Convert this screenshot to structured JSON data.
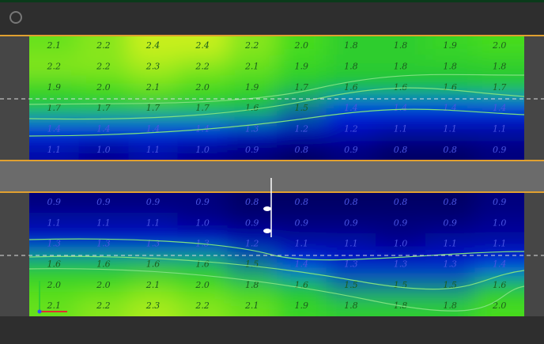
{
  "top_grid": {
    "rows": [
      [
        "2.1",
        "2.2",
        "2.4",
        "2.4",
        "2.2",
        "2.0",
        "1.8",
        "1.8",
        "1.9",
        "2.0"
      ],
      [
        "2.2",
        "2.2",
        "2.3",
        "2.2",
        "2.1",
        "1.9",
        "1.8",
        "1.8",
        "1.8",
        "1.8"
      ],
      [
        "1.9",
        "2.0",
        "2.1",
        "2.0",
        "1.9",
        "1.7",
        "1.6",
        "1.6",
        "1.6",
        "1.7"
      ],
      [
        "1.7",
        "1.7",
        "1.7",
        "1.7",
        "1.6",
        "1.5",
        "1.4",
        "1.4",
        "1.4",
        "1.4"
      ],
      [
        "1.4",
        "1.4",
        "1.4",
        "1.4",
        "1.3",
        "1.2",
        "1.2",
        "1.1",
        "1.1",
        "1.1"
      ],
      [
        "1.1",
        "1.0",
        "1.1",
        "1.0",
        "0.9",
        "0.8",
        "0.9",
        "0.8",
        "0.8",
        "0.9"
      ]
    ]
  },
  "bottom_grid": {
    "rows": [
      [
        "0.9",
        "0.9",
        "0.9",
        "0.9",
        "0.8",
        "0.8",
        "0.8",
        "0.8",
        "0.8",
        "0.9"
      ],
      [
        "1.1",
        "1.1",
        "1.1",
        "1.0",
        "0.9",
        "0.9",
        "0.9",
        "0.9",
        "0.9",
        "1.0"
      ],
      [
        "1.3",
        "1.3",
        "1.3",
        "1.3",
        "1.2",
        "1.1",
        "1.1",
        "1.0",
        "1.1",
        "1.1"
      ],
      [
        "1.6",
        "1.6",
        "1.6",
        "1.6",
        "1.5",
        "1.4",
        "1.3",
        "1.3",
        "1.3",
        "1.4"
      ],
      [
        "2.0",
        "2.0",
        "2.1",
        "2.0",
        "1.8",
        "1.6",
        "1.5",
        "1.5",
        "1.5",
        "1.6"
      ],
      [
        "2.1",
        "2.2",
        "2.3",
        "2.2",
        "2.1",
        "1.9",
        "1.8",
        "1.8",
        "1.8",
        "2.0"
      ]
    ]
  }
}
